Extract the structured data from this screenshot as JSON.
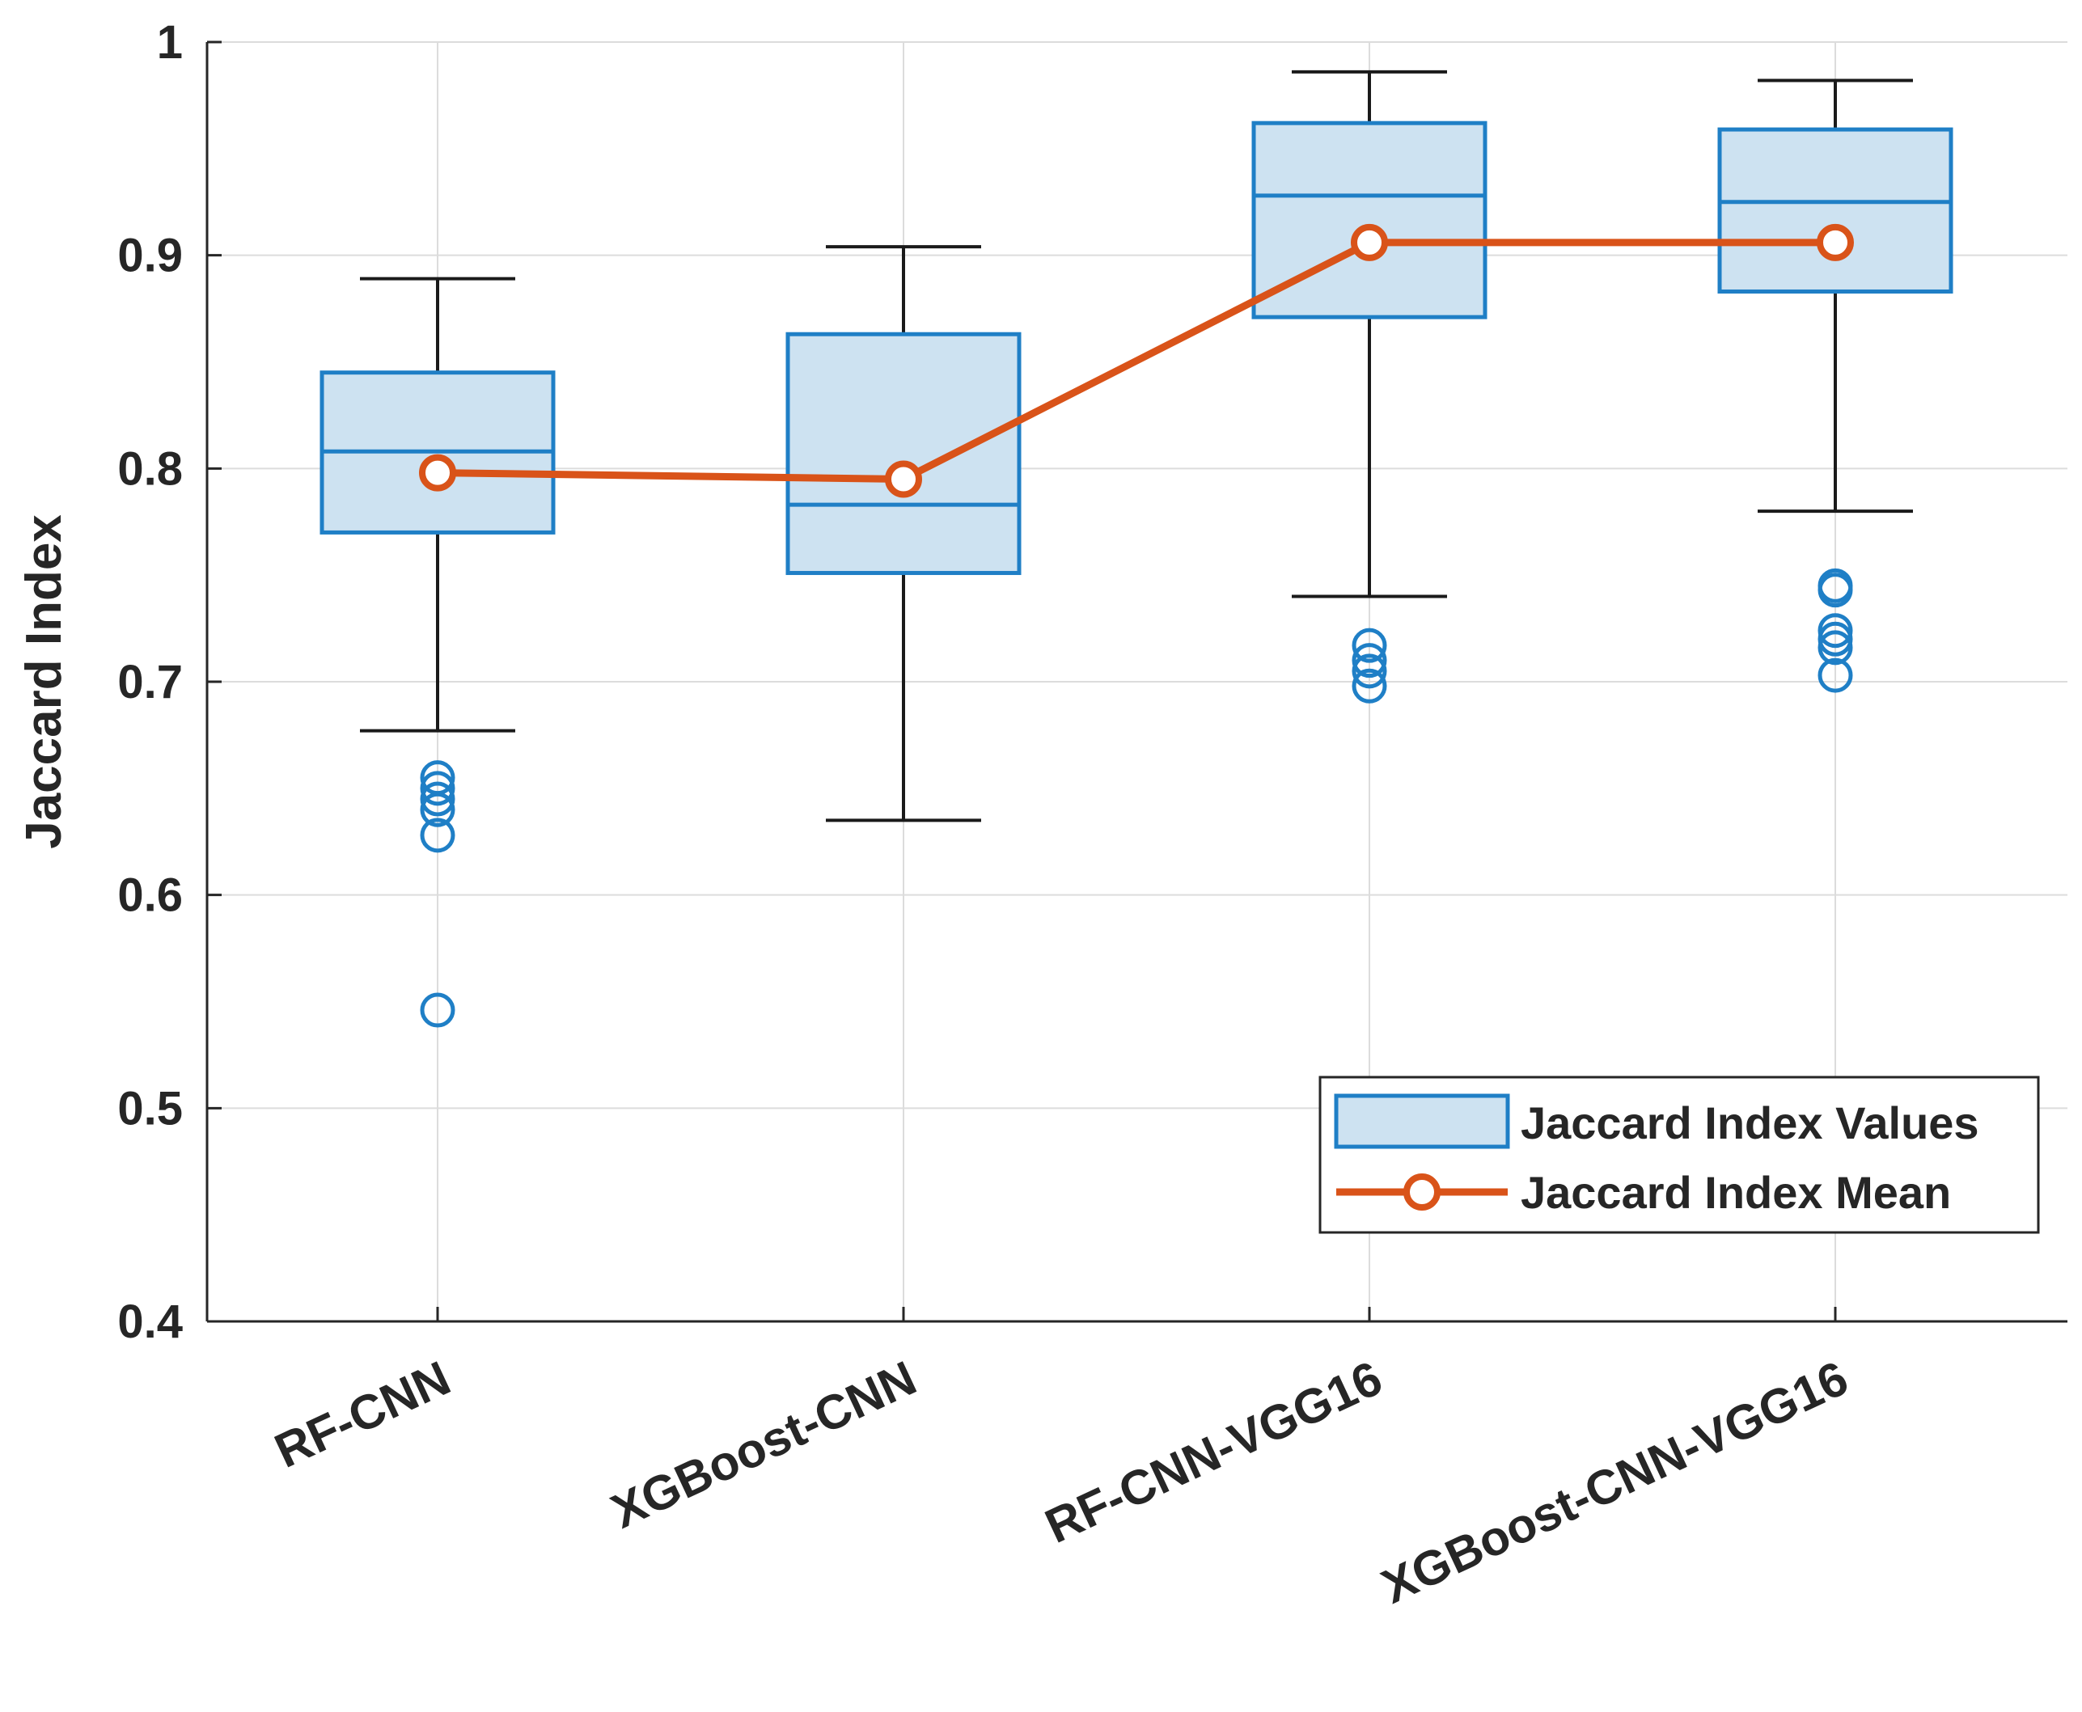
{
  "chart_data": {
    "type": "box",
    "title": "",
    "xlabel": "",
    "ylabel": "Jaccard Index",
    "ylim": [
      0.4,
      1
    ],
    "yticks": [
      "0.4",
      "0.5",
      "0.6",
      "0.7",
      "0.8",
      "0.9",
      "1"
    ],
    "grid": true,
    "legend_position": "bottom-right",
    "legend": [
      {
        "label": "Jaccard Index Values",
        "kind": "box"
      },
      {
        "label": "Jaccard Index Mean",
        "kind": "line-marker"
      }
    ],
    "categories": [
      "RF-CNN",
      "XGBoost-CNN",
      "RF-CNN-VGG16",
      "XGBoost-CNN-VGG16"
    ],
    "boxes": [
      {
        "category": "RF-CNN",
        "whisker_low": 0.677,
        "q1": 0.77,
        "median": 0.808,
        "q3": 0.845,
        "whisker_high": 0.889,
        "outliers": [
          0.655,
          0.65,
          0.645,
          0.64,
          0.628,
          0.546
        ]
      },
      {
        "category": "XGBoost-CNN",
        "whisker_low": 0.635,
        "q1": 0.751,
        "median": 0.783,
        "q3": 0.863,
        "whisker_high": 0.904,
        "outliers": []
      },
      {
        "category": "RF-CNN-VGG16",
        "whisker_low": 0.74,
        "q1": 0.871,
        "median": 0.928,
        "q3": 0.962,
        "whisker_high": 0.986,
        "outliers": [
          0.717,
          0.71,
          0.705,
          0.698
        ]
      },
      {
        "category": "XGBoost-CNN-VGG16",
        "whisker_low": 0.78,
        "q1": 0.883,
        "median": 0.925,
        "q3": 0.959,
        "whisker_high": 0.982,
        "outliers": [
          0.745,
          0.743,
          0.724,
          0.72,
          0.716,
          0.703
        ]
      }
    ],
    "series": [
      {
        "name": "Jaccard Index Mean",
        "values": [
          0.798,
          0.795,
          0.906,
          0.906
        ]
      }
    ],
    "colors": {
      "box_fill": "#cde2f1",
      "box_edge": "#1f7fc6",
      "mean": "#d95319",
      "whisker": "#1a1a1a",
      "axis": "#262626",
      "grid": "#dcdcdc"
    }
  }
}
